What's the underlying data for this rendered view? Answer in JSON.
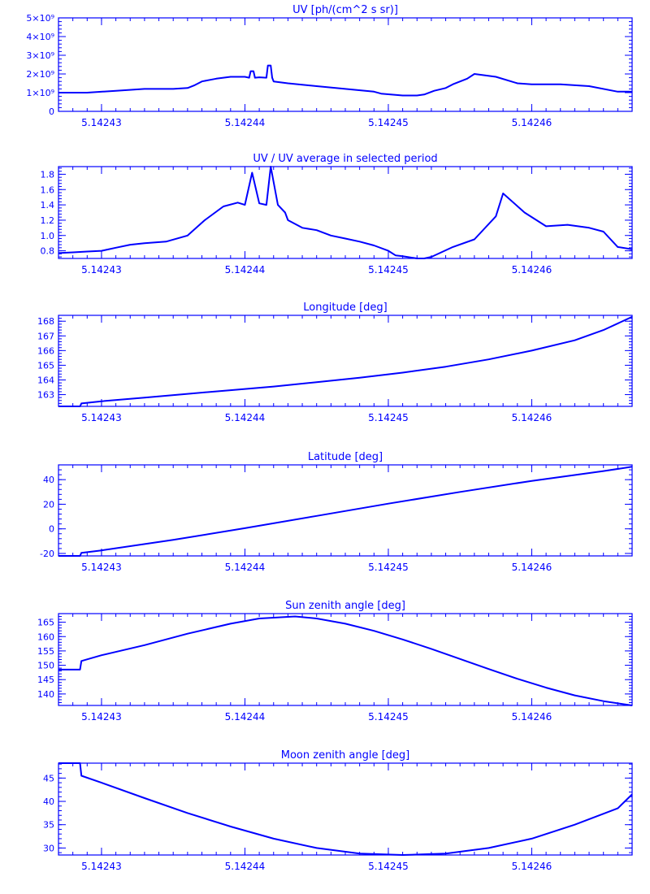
{
  "page": {
    "color": "#0000ff",
    "background": "#ffffff"
  },
  "x_axis": {
    "xlim": [
      5.142427,
      5.142467
    ],
    "tick_values": [
      5.14243,
      5.14244,
      5.14245,
      5.14246
    ],
    "tick_labels": [
      "5.14243",
      "5.14244",
      "5.14245",
      "5.14246"
    ]
  },
  "chart_data": [
    {
      "type": "line",
      "title": "UV [ph/(cm^2 s sr)]",
      "xlabel": "",
      "ylabel": "",
      "ylim": [
        0,
        5
      ],
      "yticks": [
        0,
        1,
        2,
        3,
        4,
        5
      ],
      "ytick_labels": [
        "0",
        "1×10⁹",
        "2×10⁹",
        "3×10⁹",
        "4×10⁹",
        "5×10⁹"
      ],
      "grid": false,
      "series": [
        {
          "x": [
            5.142427,
            5.142429,
            5.142431,
            5.142433,
            5.142435,
            5.142436,
            5.1424365,
            5.142437,
            5.142438,
            5.142439,
            5.14244,
            5.1424403,
            5.1424404,
            5.1424406,
            5.1424407,
            5.142441,
            5.1424415,
            5.1424416,
            5.1424418,
            5.1424419,
            5.142442,
            5.142443,
            5.142445,
            5.142447,
            5.142449,
            5.1424495,
            5.142451,
            5.142452,
            5.1424525,
            5.1424532,
            5.142454,
            5.1424545,
            5.1424555,
            5.142456,
            5.1424575,
            5.142459,
            5.14246,
            5.142462,
            5.142464,
            5.142466,
            5.142467
          ],
          "y": [
            1.0,
            1.0,
            1.1,
            1.2,
            1.2,
            1.25,
            1.4,
            1.6,
            1.75,
            1.85,
            1.85,
            1.8,
            2.15,
            2.15,
            1.8,
            1.82,
            1.8,
            2.45,
            2.45,
            1.8,
            1.6,
            1.5,
            1.35,
            1.2,
            1.05,
            0.95,
            0.85,
            0.85,
            0.9,
            1.1,
            1.25,
            1.45,
            1.75,
            2.0,
            1.85,
            1.5,
            1.45,
            1.45,
            1.35,
            1.05,
            1.05
          ]
        }
      ]
    },
    {
      "type": "line",
      "title": "UV / UV average in selected period",
      "xlabel": "",
      "ylabel": "",
      "ylim": [
        0.7,
        1.9
      ],
      "yticks": [
        0.8,
        1.0,
        1.2,
        1.4,
        1.6,
        1.8
      ],
      "ytick_labels": [
        "0.8",
        "1.0",
        "1.2",
        "1.4",
        "1.6",
        "1.8"
      ],
      "grid": false,
      "series": [
        {
          "x": [
            5.142427,
            5.142428,
            5.142429,
            5.14243,
            5.142431,
            5.142432,
            5.142433,
            5.1424345,
            5.142436,
            5.1424372,
            5.1424385,
            5.1424395,
            5.14244,
            5.1424405,
            5.142441,
            5.1424415,
            5.1424418,
            5.1424423,
            5.1424428,
            5.142443,
            5.142444,
            5.142445,
            5.142446,
            5.142447,
            5.142448,
            5.142449,
            5.14245,
            5.1424505,
            5.142451,
            5.142452,
            5.1424525,
            5.142453,
            5.1424545,
            5.142456,
            5.1424575,
            5.142458,
            5.1424595,
            5.142461,
            5.1424625,
            5.142464,
            5.142465,
            5.142466,
            5.142467
          ],
          "y": [
            0.77,
            0.78,
            0.79,
            0.8,
            0.84,
            0.88,
            0.9,
            0.92,
            1.0,
            1.2,
            1.38,
            1.43,
            1.4,
            1.82,
            1.42,
            1.4,
            1.9,
            1.4,
            1.3,
            1.2,
            1.1,
            1.07,
            1.0,
            0.96,
            0.92,
            0.87,
            0.8,
            0.74,
            0.73,
            0.7,
            0.7,
            0.72,
            0.85,
            0.95,
            1.25,
            1.55,
            1.3,
            1.12,
            1.14,
            1.1,
            1.05,
            0.85,
            0.82
          ]
        }
      ]
    },
    {
      "type": "line",
      "title": "Longitude [deg]",
      "xlabel": "",
      "ylabel": "",
      "ylim": [
        162.2,
        168.4
      ],
      "yticks": [
        163,
        164,
        165,
        166,
        167,
        168
      ],
      "ytick_labels": [
        "163",
        "164",
        "165",
        "166",
        "167",
        "168"
      ],
      "grid": false,
      "series": [
        {
          "x": [
            5.142427,
            5.1424285,
            5.1424286,
            5.14243,
            5.142433,
            5.142436,
            5.142439,
            5.142442,
            5.142445,
            5.142448,
            5.142451,
            5.142454,
            5.142457,
            5.14246,
            5.142463,
            5.142465,
            5.142467
          ],
          "y": [
            162.2,
            162.2,
            162.4,
            162.55,
            162.8,
            163.05,
            163.3,
            163.55,
            163.85,
            164.15,
            164.5,
            164.9,
            165.4,
            166.0,
            166.7,
            167.4,
            168.3
          ]
        }
      ]
    },
    {
      "type": "line",
      "title": "Latitude [deg]",
      "xlabel": "",
      "ylabel": "",
      "ylim": [
        -22,
        52
      ],
      "yticks": [
        -20,
        0,
        20,
        40
      ],
      "ytick_labels": [
        "-20",
        "0",
        "20",
        "40"
      ],
      "grid": false,
      "series": [
        {
          "x": [
            5.142427,
            5.1424285,
            5.1424286,
            5.14243,
            5.142435,
            5.14244,
            5.142445,
            5.14245,
            5.142455,
            5.14246,
            5.142465,
            5.142467
          ],
          "y": [
            -22,
            -22,
            -19.5,
            -17.5,
            -9.0,
            0.5,
            10.5,
            20.5,
            30.0,
            39.0,
            47.0,
            50.5
          ]
        }
      ]
    },
    {
      "type": "line",
      "title": "Sun zenith angle [deg]",
      "xlabel": "",
      "ylabel": "",
      "ylim": [
        136,
        168
      ],
      "yticks": [
        140,
        145,
        150,
        155,
        160,
        165
      ],
      "ytick_labels": [
        "140",
        "145",
        "150",
        "155",
        "160",
        "165"
      ],
      "grid": false,
      "series": [
        {
          "x": [
            5.142427,
            5.1424285,
            5.1424286,
            5.14243,
            5.142433,
            5.142436,
            5.142439,
            5.142441,
            5.1424435,
            5.142445,
            5.142447,
            5.142449,
            5.142451,
            5.142453,
            5.142455,
            5.142457,
            5.142459,
            5.142461,
            5.142463,
            5.142465,
            5.142467
          ],
          "y": [
            148.5,
            148.5,
            151.5,
            153.5,
            157.0,
            161.0,
            164.5,
            166.3,
            167.0,
            166.3,
            164.5,
            162.0,
            159.0,
            155.7,
            152.2,
            148.7,
            145.3,
            142.2,
            139.5,
            137.5,
            136.0
          ]
        }
      ]
    },
    {
      "type": "line",
      "title": "Moon zenith angle [deg]",
      "xlabel": "",
      "ylabel": "",
      "ylim": [
        28.5,
        48.2
      ],
      "yticks": [
        30,
        35,
        40,
        45
      ],
      "ytick_labels": [
        "30",
        "35",
        "40",
        "45"
      ],
      "grid": false,
      "series": [
        {
          "x": [
            5.142427,
            5.1424285,
            5.1424286,
            5.14243,
            5.142433,
            5.142436,
            5.142439,
            5.142442,
            5.142445,
            5.142448,
            5.142451,
            5.142454,
            5.142457,
            5.14246,
            5.142463,
            5.142466,
            5.142467
          ],
          "y": [
            48.2,
            48.2,
            45.5,
            44.0,
            40.7,
            37.5,
            34.6,
            32.0,
            30.0,
            28.8,
            28.5,
            28.8,
            30.0,
            32.0,
            35.0,
            38.5,
            41.5
          ]
        }
      ]
    }
  ]
}
